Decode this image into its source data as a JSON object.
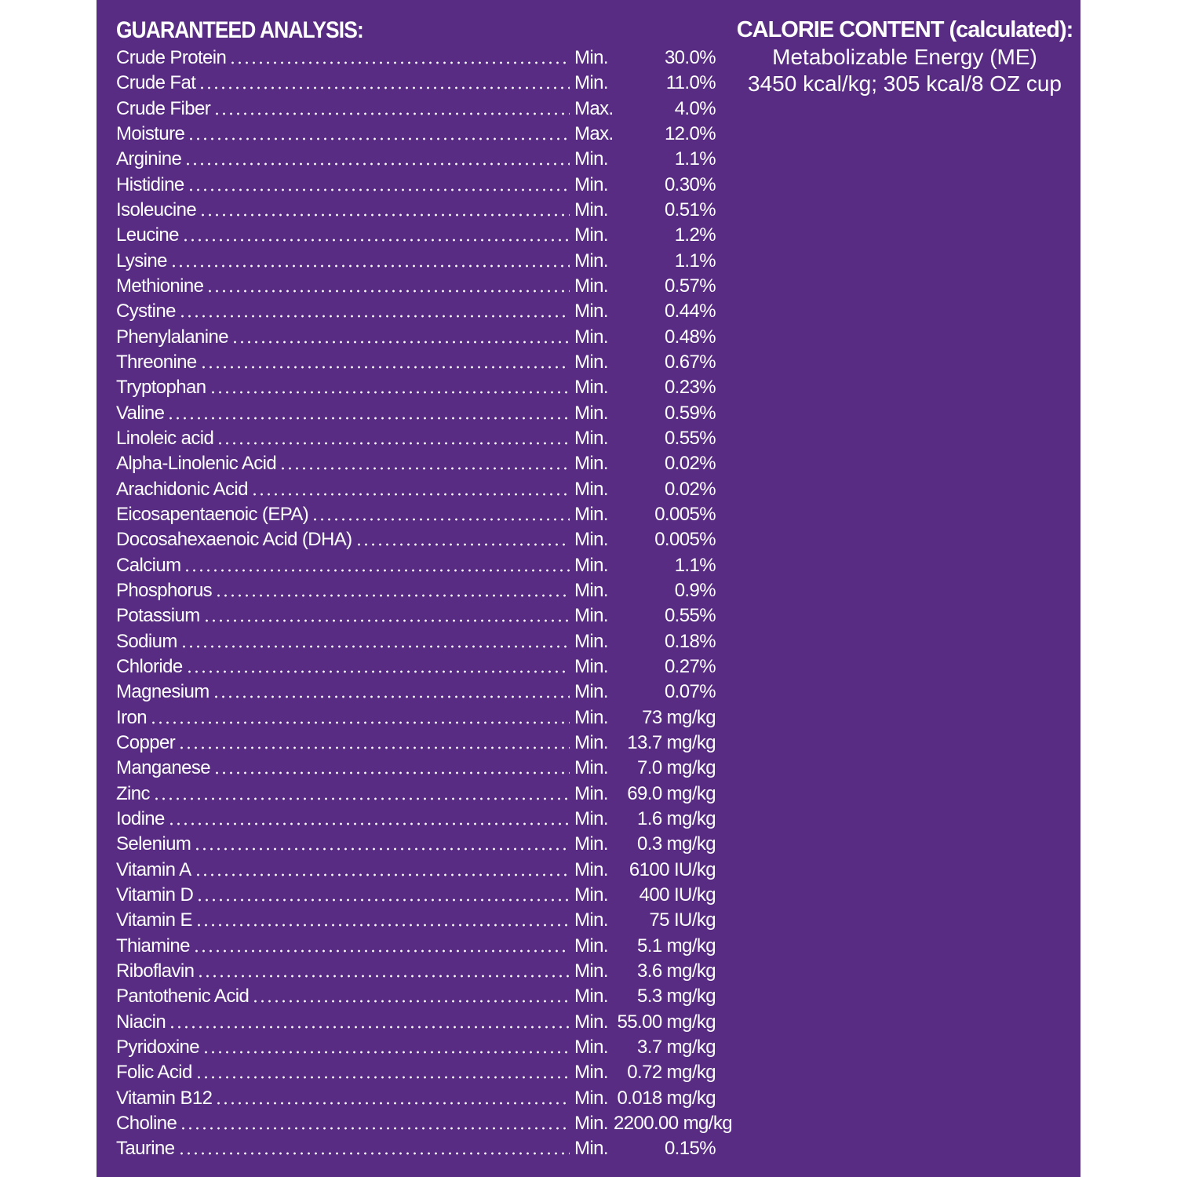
{
  "header": {
    "title": "GUARANTEED ANALYSIS:"
  },
  "table": {
    "rows": [
      [
        "Crude Protein",
        "Min.",
        "30.0%"
      ],
      [
        "Crude Fat",
        "Min.",
        "11.0%"
      ],
      [
        "Crude Fiber",
        "Max.",
        "4.0%"
      ],
      [
        "Moisture",
        "Max.",
        "12.0%"
      ],
      [
        "Arginine",
        "Min.",
        "1.1%"
      ],
      [
        "Histidine",
        "Min.",
        "0.30%"
      ],
      [
        "Isoleucine",
        "Min.",
        "0.51%"
      ],
      [
        "Leucine",
        "Min.",
        "1.2%"
      ],
      [
        "Lysine",
        "Min.",
        "1.1%"
      ],
      [
        "Methionine",
        "Min.",
        "0.57%"
      ],
      [
        "Cystine",
        "Min.",
        "0.44%"
      ],
      [
        "Phenylalanine",
        "Min.",
        "0.48%"
      ],
      [
        "Threonine",
        "Min.",
        "0.67%"
      ],
      [
        "Tryptophan",
        "Min.",
        "0.23%"
      ],
      [
        "Valine",
        "Min.",
        "0.59%"
      ],
      [
        "Linoleic acid",
        "Min.",
        "0.55%"
      ],
      [
        "Alpha-Linolenic Acid",
        "Min.",
        "0.02%"
      ],
      [
        "Arachidonic Acid",
        "Min.",
        "0.02%"
      ],
      [
        "Eicosapentaenoic (EPA)",
        "Min.",
        "0.005%"
      ],
      [
        "Docosahexaenoic Acid (DHA)",
        "Min.",
        "0.005%"
      ],
      [
        "Calcium",
        "Min.",
        "1.1%"
      ],
      [
        "Phosphorus",
        "Min.",
        "0.9%"
      ],
      [
        "Potassium",
        "Min.",
        "0.55%"
      ],
      [
        "Sodium",
        "Min.",
        "0.18%"
      ],
      [
        "Chloride",
        "Min.",
        "0.27%"
      ],
      [
        "Magnesium",
        "Min.",
        "0.07%"
      ],
      [
        "Iron",
        "Min.",
        "73 mg/kg"
      ],
      [
        "Copper",
        "Min.",
        "13.7 mg/kg"
      ],
      [
        "Manganese",
        "Min.",
        "7.0 mg/kg"
      ],
      [
        "Zinc",
        "Min.",
        "69.0 mg/kg"
      ],
      [
        "Iodine",
        "Min.",
        "1.6 mg/kg"
      ],
      [
        "Selenium",
        "Min.",
        "0.3 mg/kg"
      ],
      [
        "Vitamin A",
        "Min.",
        "6100 IU/kg"
      ],
      [
        "Vitamin D",
        "Min.",
        "400 IU/kg"
      ],
      [
        "Vitamin E",
        "Min.",
        "75 IU/kg"
      ],
      [
        "Thiamine",
        "Min.",
        "5.1 mg/kg"
      ],
      [
        "Riboflavin",
        "Min.",
        "3.6 mg/kg"
      ],
      [
        "Pantothenic Acid",
        "Min.",
        "5.3 mg/kg"
      ],
      [
        "Niacin",
        "Min.",
        "55.00 mg/kg"
      ],
      [
        "Pyridoxine",
        "Min.",
        "3.7 mg/kg"
      ],
      [
        "Folic Acid",
        "Min.",
        "0.72 mg/kg"
      ],
      [
        "Vitamin B12",
        "Min.",
        "0.018 mg/kg"
      ],
      [
        "Choline",
        "Min.",
        "2200.00 mg/kg"
      ],
      [
        "Taurine",
        "Min.",
        "0.15%"
      ]
    ]
  },
  "calorie": {
    "title": "CALORIE CONTENT (calculated):",
    "lines": [
      "Metabolizable Energy (ME)",
      "3450 kcal/kg; 305 kcal/8 OZ cup"
    ]
  }
}
